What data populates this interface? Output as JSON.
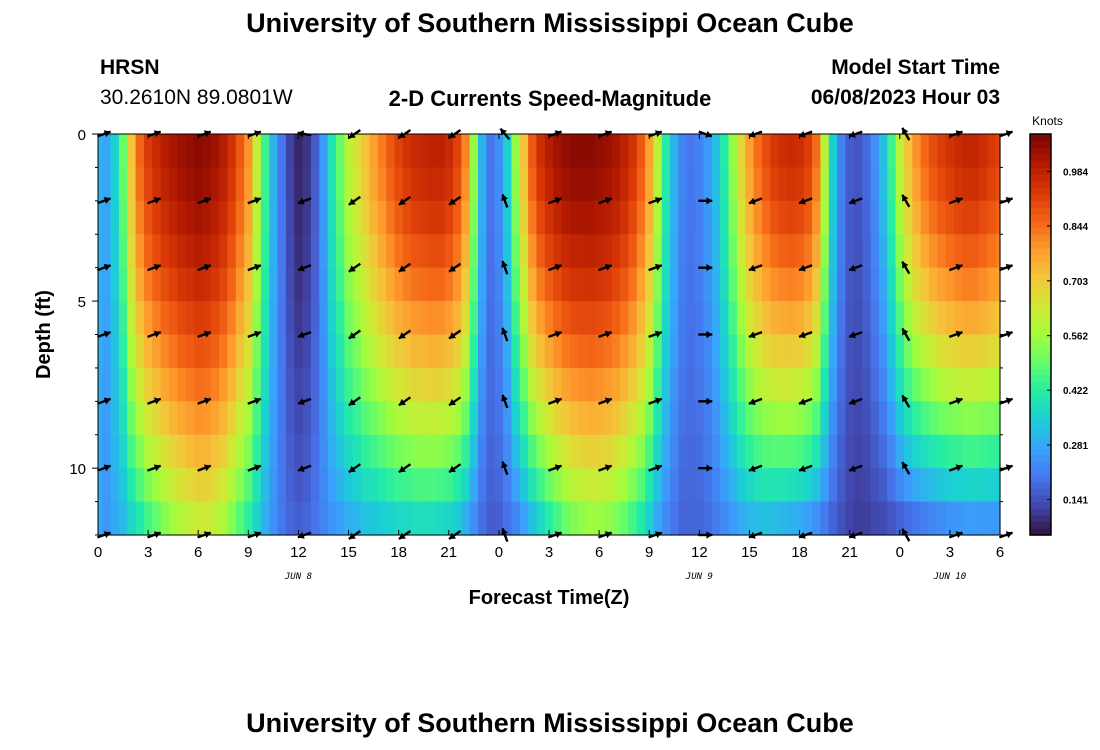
{
  "header": {
    "title_top": "University of Southern Mississippi Ocean Cube",
    "title_bottom": "University of Southern Mississippi Ocean Cube",
    "station": "HRSN",
    "coords": "30.2610N  89.0801W",
    "plot_title": "2-D Currents Speed-Magnitude",
    "model_start_label": "Model Start Time",
    "model_start_value": "06/08/2023 Hour 03"
  },
  "chart_data": {
    "type": "heatmap",
    "title": "2-D Currents Speed-Magnitude",
    "xlabel": "Forecast Time(Z)",
    "ylabel": "Depth (ft)",
    "x_tick_labels": [
      "0",
      "3",
      "6",
      "9",
      "12",
      "15",
      "18",
      "21",
      "0",
      "3",
      "6",
      "9",
      "12",
      "15",
      "18",
      "21",
      "0",
      "3",
      "6"
    ],
    "x_range_hours": [
      0,
      54
    ],
    "day_labels": [
      {
        "text": "JUN 8",
        "hour": 12
      },
      {
        "text": "JUN 9",
        "hour": 36
      },
      {
        "text": "JUN 10",
        "hour": 51
      }
    ],
    "y_tick_labels": [
      "0",
      "5",
      "10"
    ],
    "y_range_ft": [
      0,
      12
    ],
    "colorbar": {
      "unit": "Knots",
      "range": [
        0.05,
        1.08
      ],
      "tick_values": [
        0.141,
        0.281,
        0.422,
        0.562,
        0.703,
        0.844,
        0.984
      ],
      "tick_labels": [
        "0.141",
        "0.281",
        "0.422",
        "0.562",
        "0.703",
        "0.844",
        "0.984"
      ],
      "colors": [
        "#30123b",
        "#4145ab",
        "#4675ed",
        "#39a2fc",
        "#1bcfd4",
        "#24eca6",
        "#61fc6c",
        "#a4fc3b",
        "#d1e834",
        "#f3c63a",
        "#fe9b2d",
        "#f36315",
        "#d93806",
        "#b11901",
        "#7a0402"
      ]
    },
    "speed_columns": [
      {
        "hour": 0.0,
        "surface": 0.3,
        "bottom": 0.28
      },
      {
        "hour": 0.5,
        "surface": 0.28,
        "bottom": 0.25
      },
      {
        "hour": 1.0,
        "surface": 0.35,
        "bottom": 0.28
      },
      {
        "hour": 1.5,
        "surface": 0.5,
        "bottom": 0.3
      },
      {
        "hour": 2.0,
        "surface": 0.72,
        "bottom": 0.34
      },
      {
        "hour": 2.5,
        "surface": 0.86,
        "bottom": 0.38
      },
      {
        "hour": 3.0,
        "surface": 0.93,
        "bottom": 0.42
      },
      {
        "hour": 3.5,
        "surface": 0.97,
        "bottom": 0.46
      },
      {
        "hour": 4.0,
        "surface": 1.0,
        "bottom": 0.5
      },
      {
        "hour": 4.5,
        "surface": 1.02,
        "bottom": 0.53
      },
      {
        "hour": 5.0,
        "surface": 1.04,
        "bottom": 0.56
      },
      {
        "hour": 5.5,
        "surface": 1.05,
        "bottom": 0.58
      },
      {
        "hour": 6.0,
        "surface": 1.06,
        "bottom": 0.6
      },
      {
        "hour": 6.5,
        "surface": 1.05,
        "bottom": 0.6
      },
      {
        "hour": 7.0,
        "surface": 1.03,
        "bottom": 0.58
      },
      {
        "hour": 7.5,
        "surface": 1.0,
        "bottom": 0.55
      },
      {
        "hour": 8.0,
        "surface": 0.95,
        "bottom": 0.5
      },
      {
        "hour": 8.5,
        "surface": 0.88,
        "bottom": 0.45
      },
      {
        "hour": 9.0,
        "surface": 0.8,
        "bottom": 0.4
      },
      {
        "hour": 9.5,
        "surface": 0.62,
        "bottom": 0.34
      },
      {
        "hour": 10.0,
        "surface": 0.45,
        "bottom": 0.28
      },
      {
        "hour": 10.5,
        "surface": 0.3,
        "bottom": 0.24
      },
      {
        "hour": 11.0,
        "surface": 0.2,
        "bottom": 0.2
      },
      {
        "hour": 11.5,
        "surface": 0.12,
        "bottom": 0.18
      },
      {
        "hour": 12.0,
        "surface": 0.08,
        "bottom": 0.17
      },
      {
        "hour": 12.5,
        "surface": 0.1,
        "bottom": 0.18
      },
      {
        "hour": 13.0,
        "surface": 0.16,
        "bottom": 0.2
      },
      {
        "hour": 13.5,
        "surface": 0.26,
        "bottom": 0.22
      },
      {
        "hour": 14.0,
        "surface": 0.4,
        "bottom": 0.24
      },
      {
        "hour": 14.5,
        "surface": 0.5,
        "bottom": 0.25
      },
      {
        "hour": 15.0,
        "surface": 0.6,
        "bottom": 0.27
      },
      {
        "hour": 15.5,
        "surface": 0.66,
        "bottom": 0.28
      },
      {
        "hour": 16.0,
        "surface": 0.72,
        "bottom": 0.3
      },
      {
        "hour": 16.5,
        "surface": 0.78,
        "bottom": 0.3
      },
      {
        "hour": 17.0,
        "surface": 0.83,
        "bottom": 0.31
      },
      {
        "hour": 17.5,
        "surface": 0.88,
        "bottom": 0.32
      },
      {
        "hour": 18.0,
        "surface": 0.92,
        "bottom": 0.33
      },
      {
        "hour": 18.5,
        "surface": 0.95,
        "bottom": 0.33
      },
      {
        "hour": 19.0,
        "surface": 0.97,
        "bottom": 0.34
      },
      {
        "hour": 19.5,
        "surface": 0.98,
        "bottom": 0.34
      },
      {
        "hour": 20.0,
        "surface": 0.99,
        "bottom": 0.34
      },
      {
        "hour": 20.5,
        "surface": 0.99,
        "bottom": 0.33
      },
      {
        "hour": 21.0,
        "surface": 0.97,
        "bottom": 0.32
      },
      {
        "hour": 21.5,
        "surface": 0.92,
        "bottom": 0.3
      },
      {
        "hour": 22.0,
        "surface": 0.82,
        "bottom": 0.26
      },
      {
        "hour": 22.5,
        "surface": 0.55,
        "bottom": 0.22
      },
      {
        "hour": 23.0,
        "surface": 0.3,
        "bottom": 0.18
      },
      {
        "hour": 23.5,
        "surface": 0.2,
        "bottom": 0.16
      },
      {
        "hour": 24.0,
        "surface": 0.24,
        "bottom": 0.16
      },
      {
        "hour": 24.5,
        "surface": 0.35,
        "bottom": 0.18
      },
      {
        "hour": 25.0,
        "surface": 0.55,
        "bottom": 0.2
      },
      {
        "hour": 25.5,
        "surface": 0.72,
        "bottom": 0.24
      },
      {
        "hour": 26.0,
        "surface": 0.88,
        "bottom": 0.28
      },
      {
        "hour": 26.5,
        "surface": 0.96,
        "bottom": 0.33
      },
      {
        "hour": 27.0,
        "surface": 1.0,
        "bottom": 0.38
      },
      {
        "hour": 27.5,
        "surface": 1.03,
        "bottom": 0.42
      },
      {
        "hour": 28.0,
        "surface": 1.05,
        "bottom": 0.46
      },
      {
        "hour": 28.5,
        "surface": 1.06,
        "bottom": 0.49
      },
      {
        "hour": 29.0,
        "surface": 1.06,
        "bottom": 0.51
      },
      {
        "hour": 29.5,
        "surface": 1.06,
        "bottom": 0.52
      },
      {
        "hour": 30.0,
        "surface": 1.05,
        "bottom": 0.52
      },
      {
        "hour": 30.5,
        "surface": 1.04,
        "bottom": 0.51
      },
      {
        "hour": 31.0,
        "surface": 1.02,
        "bottom": 0.49
      },
      {
        "hour": 31.5,
        "surface": 0.99,
        "bottom": 0.46
      },
      {
        "hour": 32.0,
        "surface": 0.95,
        "bottom": 0.42
      },
      {
        "hour": 32.5,
        "surface": 0.88,
        "bottom": 0.38
      },
      {
        "hour": 33.0,
        "surface": 0.78,
        "bottom": 0.32
      },
      {
        "hour": 33.5,
        "surface": 0.6,
        "bottom": 0.26
      },
      {
        "hour": 34.0,
        "surface": 0.42,
        "bottom": 0.22
      },
      {
        "hour": 34.5,
        "surface": 0.3,
        "bottom": 0.19
      },
      {
        "hour": 35.0,
        "surface": 0.22,
        "bottom": 0.17
      },
      {
        "hour": 35.5,
        "surface": 0.2,
        "bottom": 0.17
      },
      {
        "hour": 36.0,
        "surface": 0.22,
        "bottom": 0.17
      },
      {
        "hour": 36.5,
        "surface": 0.26,
        "bottom": 0.18
      },
      {
        "hour": 37.0,
        "surface": 0.32,
        "bottom": 0.2
      },
      {
        "hour": 37.5,
        "surface": 0.42,
        "bottom": 0.22
      },
      {
        "hour": 38.0,
        "surface": 0.55,
        "bottom": 0.24
      },
      {
        "hour": 38.5,
        "surface": 0.68,
        "bottom": 0.26
      },
      {
        "hour": 39.0,
        "surface": 0.78,
        "bottom": 0.27
      },
      {
        "hour": 39.5,
        "surface": 0.85,
        "bottom": 0.28
      },
      {
        "hour": 40.0,
        "surface": 0.9,
        "bottom": 0.28
      },
      {
        "hour": 40.5,
        "surface": 0.94,
        "bottom": 0.27
      },
      {
        "hour": 41.0,
        "surface": 0.96,
        "bottom": 0.26
      },
      {
        "hour": 41.5,
        "surface": 0.97,
        "bottom": 0.25
      },
      {
        "hour": 42.0,
        "surface": 0.96,
        "bottom": 0.24
      },
      {
        "hour": 42.5,
        "surface": 0.93,
        "bottom": 0.22
      },
      {
        "hour": 43.0,
        "surface": 0.85,
        "bottom": 0.2
      },
      {
        "hour": 43.5,
        "surface": 0.6,
        "bottom": 0.18
      },
      {
        "hour": 44.0,
        "surface": 0.35,
        "bottom": 0.16
      },
      {
        "hour": 44.5,
        "surface": 0.22,
        "bottom": 0.14
      },
      {
        "hour": 45.0,
        "surface": 0.16,
        "bottom": 0.12
      },
      {
        "hour": 45.5,
        "surface": 0.15,
        "bottom": 0.11
      },
      {
        "hour": 46.0,
        "surface": 0.18,
        "bottom": 0.11
      },
      {
        "hour": 46.5,
        "surface": 0.24,
        "bottom": 0.12
      },
      {
        "hour": 47.0,
        "surface": 0.32,
        "bottom": 0.12
      },
      {
        "hour": 47.5,
        "surface": 0.45,
        "bottom": 0.13
      },
      {
        "hour": 48.0,
        "surface": 0.6,
        "bottom": 0.14
      },
      {
        "hour": 48.5,
        "surface": 0.72,
        "bottom": 0.15
      },
      {
        "hour": 49.0,
        "surface": 0.8,
        "bottom": 0.16
      },
      {
        "hour": 49.5,
        "surface": 0.86,
        "bottom": 0.17
      },
      {
        "hour": 50.0,
        "surface": 0.9,
        "bottom": 0.18
      },
      {
        "hour": 50.5,
        "surface": 0.93,
        "bottom": 0.19
      },
      {
        "hour": 51.0,
        "surface": 0.95,
        "bottom": 0.2
      },
      {
        "hour": 51.5,
        "surface": 0.97,
        "bottom": 0.2
      },
      {
        "hour": 52.0,
        "surface": 0.98,
        "bottom": 0.21
      },
      {
        "hour": 52.5,
        "surface": 0.98,
        "bottom": 0.21
      },
      {
        "hour": 53.0,
        "surface": 0.96,
        "bottom": 0.21
      },
      {
        "hour": 53.5,
        "surface": 0.94,
        "bottom": 0.21
      },
      {
        "hour": 54.0,
        "surface": 0.92,
        "bottom": 0.21
      }
    ],
    "vectors": {
      "hours": [
        0,
        3,
        6,
        9,
        12,
        15,
        18,
        21,
        24,
        27,
        30,
        33,
        36,
        39,
        42,
        45,
        48,
        51,
        54
      ],
      "depths_ft": [
        0,
        2,
        4,
        6,
        8,
        10,
        12
      ],
      "directions_deg": [
        20,
        20,
        20,
        20,
        200,
        215,
        215,
        215,
        110,
        20,
        20,
        20,
        0,
        200,
        200,
        200,
        120,
        20,
        20
      ],
      "surface_turn_deg": [
        0,
        0,
        0,
        0,
        -30,
        0,
        0,
        0,
        20,
        0,
        0,
        0,
        -20,
        0,
        0,
        0,
        0,
        0,
        0
      ]
    }
  }
}
